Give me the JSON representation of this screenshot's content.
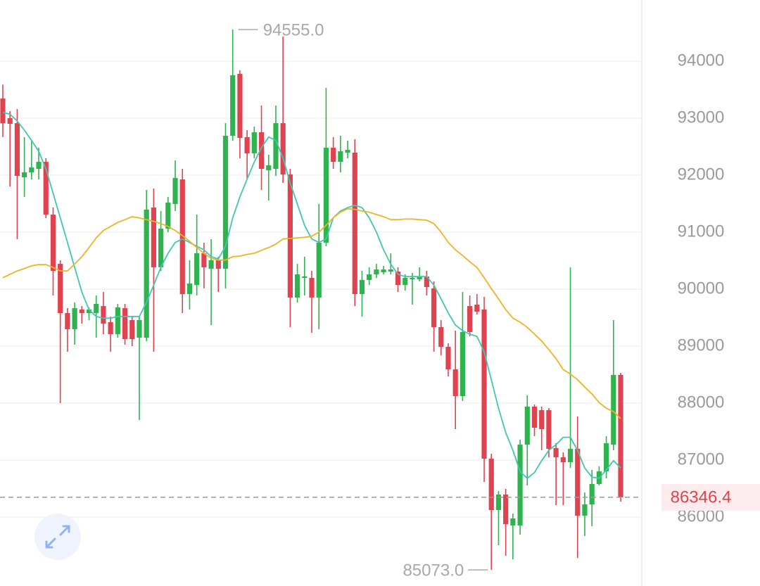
{
  "chart_data": {
    "type": "candlestick",
    "open": [
      93345,
      93000,
      92913,
      91963,
      92049,
      92111,
      92234,
      91308,
      90444,
      89580,
      89296,
      89642,
      89580,
      89580,
      89703,
      89420,
      89210,
      89666,
      89457,
      89148,
      89148,
      91432,
      90383,
      91062,
      91494,
      91926,
      89913,
      90074,
      90629,
      90358,
      90506,
      90358,
      92691,
      93778,
      92667,
      92383,
      92753,
      92086,
      92111,
      92913,
      92012,
      89852,
      90197,
      90197,
      89852,
      90815,
      92481,
      92234,
      92395,
      92395,
      89913,
      90160,
      90259,
      90296,
      90308,
      90308,
      90074,
      90173,
      90173,
      90222,
      90012,
      89333,
      88987,
      88592,
      88123,
      89703,
      89728,
      89642,
      87024,
      86123,
      86395,
      85852,
      85852,
      87271,
      87938,
      87876,
      87876,
      87210,
      87049,
      86963,
      87197,
      86024,
      86222,
      86580,
      86802,
      87271,
      88494
    ],
    "high": [
      93590,
      93123,
      93160,
      92667,
      92605,
      92481,
      92296,
      91432,
      90506,
      89666,
      89765,
      89703,
      89679,
      89889,
      89950,
      89518,
      89741,
      89741,
      89518,
      89518,
      91741,
      91765,
      91370,
      91617,
      92259,
      92111,
      90506,
      91308,
      90815,
      90876,
      90568,
      92913,
      94555,
      93839,
      92790,
      92852,
      93222,
      92358,
      93222,
      94432,
      92111,
      90444,
      90568,
      90321,
      91494,
      93531,
      92667,
      92691,
      92605,
      92629,
      90321,
      90383,
      90444,
      90407,
      90629,
      90383,
      90259,
      90284,
      90383,
      90321,
      90136,
      89457,
      89049,
      89271,
      89950,
      89889,
      89913,
      89864,
      87111,
      86456,
      86494,
      86061,
      87358,
      88136,
      87975,
      87938,
      87913,
      87296,
      87136,
      90383,
      87765,
      86432,
      86827,
      86889,
      87419,
      89457,
      88531
    ],
    "low": [
      92670,
      91802,
      90876,
      91617,
      91926,
      91926,
      91247,
      89889,
      88000,
      88901,
      89024,
      89395,
      89457,
      89148,
      89210,
      88901,
      89148,
      89024,
      89000,
      87703,
      89086,
      88901,
      90321,
      91000,
      91370,
      89580,
      89642,
      89889,
      90012,
      89370,
      89950,
      90012,
      92605,
      92296,
      91926,
      92296,
      91741,
      91555,
      91987,
      91864,
      89333,
      89765,
      89889,
      89234,
      89296,
      90753,
      92111,
      92049,
      92296,
      89703,
      89518,
      90074,
      90197,
      90259,
      90259,
      89950,
      89975,
      89728,
      90136,
      89889,
      88901,
      88839,
      88469,
      87543,
      88037,
      89173,
      89555,
      86617,
      85073,
      85506,
      85321,
      85259,
      85691,
      86555,
      87419,
      87173,
      87049,
      86210,
      86210,
      86864,
      85284,
      85666,
      85839,
      86555,
      86679,
      87173,
      86271
    ],
    "close": [
      92910,
      92901,
      91987,
      92049,
      92136,
      92234,
      91308,
      90321,
      89580,
      89296,
      89666,
      89580,
      89642,
      89741,
      89395,
      89210,
      89679,
      89123,
      89123,
      89457,
      91395,
      90383,
      91062,
      91518,
      91950,
      89913,
      90099,
      90629,
      90383,
      90506,
      90358,
      92691,
      93753,
      92654,
      92383,
      92753,
      92111,
      92173,
      92913,
      92012,
      89852,
      90259,
      90222,
      89852,
      90815,
      92481,
      92234,
      92420,
      92444,
      89913,
      90160,
      90259,
      90345,
      90345,
      90345,
      90074,
      90197,
      90197,
      90222,
      90037,
      89333,
      88987,
      88592,
      88123,
      89247,
      89247,
      89605,
      87024,
      86123,
      86395,
      85876,
      85975,
      87271,
      87938,
      87568,
      87543,
      87197,
      87049,
      86963,
      87197,
      86024,
      86222,
      86580,
      86802,
      87296,
      88494,
      86346.4
    ],
    "up_color": "#2fb34f",
    "down_color": "#e0434f",
    "series": [
      {
        "color": "#3fc7b1",
        "values": [
          93100,
          93070,
          92950,
          92790,
          92610,
          92420,
          92110,
          91680,
          91250,
          90820,
          90380,
          89950,
          89640,
          89520,
          89490,
          89490,
          89520,
          89520,
          89520,
          89520,
          89770,
          90070,
          90380,
          90630,
          90820,
          90880,
          90820,
          90750,
          90690,
          90570,
          90530,
          90750,
          91250,
          91620,
          91930,
          92230,
          92480,
          92670,
          92610,
          92300,
          91860,
          91490,
          91120,
          90880,
          90820,
          90880,
          91250,
          91370,
          91430,
          91470,
          91430,
          91250,
          91000,
          90690,
          90440,
          90260,
          90220,
          90220,
          90220,
          90220,
          90070,
          89830,
          89580,
          89370,
          89270,
          89210,
          89170,
          88900,
          88410,
          87910,
          87480,
          87170,
          86800,
          86680,
          86780,
          86990,
          87170,
          87270,
          87400,
          87400,
          87170,
          86860,
          86700,
          86680,
          86830,
          86990,
          86860
        ]
      },
      {
        "color": "#f0b323",
        "values": [
          90200,
          90260,
          90320,
          90360,
          90410,
          90430,
          90430,
          90380,
          90320,
          90320,
          90440,
          90570,
          90730,
          90900,
          91030,
          91100,
          91170,
          91220,
          91270,
          91250,
          91220,
          91190,
          91150,
          91100,
          91030,
          90940,
          90840,
          90730,
          90630,
          90540,
          90510,
          90510,
          90570,
          90580,
          90610,
          90630,
          90680,
          90730,
          90790,
          90880,
          90890,
          90900,
          90910,
          90930,
          91000,
          91120,
          91250,
          91350,
          91410,
          91400,
          91370,
          91350,
          91310,
          91270,
          91220,
          91220,
          91230,
          91230,
          91220,
          91210,
          91150,
          91000,
          90820,
          90690,
          90590,
          90480,
          90380,
          90200,
          90010,
          89830,
          89640,
          89490,
          89420,
          89330,
          89210,
          89090,
          88940,
          88780,
          88590,
          88510,
          88410,
          88280,
          88160,
          88010,
          87910,
          87850,
          87730
        ]
      }
    ],
    "ylim": [
      84790,
      95074
    ],
    "yticks": [
      86000,
      87000,
      88000,
      89000,
      90000,
      91000,
      92000,
      93000,
      94000
    ],
    "grid": true,
    "last_price": 86346.4,
    "max_label": {
      "value": 94555,
      "label": "94555.0"
    },
    "min_label": {
      "value": 85073,
      "label": "85073.0"
    }
  }
}
